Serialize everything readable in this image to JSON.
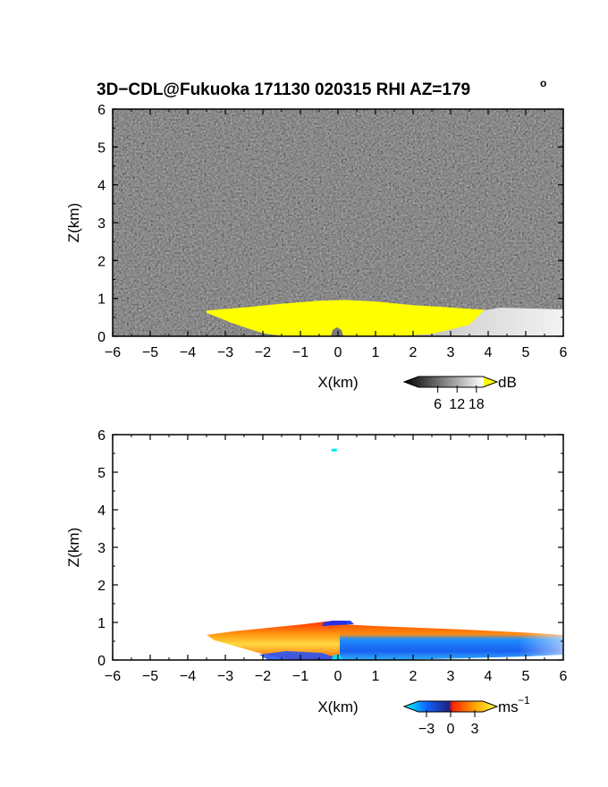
{
  "title": {
    "main": "3D−CDL@Fukuoka 171130 020315 RHI AZ=179",
    "degree_mark": "o"
  },
  "chart_data": [
    {
      "type": "heatmap",
      "panel": "reflectivity",
      "xlabel": "X(km)",
      "ylabel": "Z(km)",
      "xlim": [
        -6,
        6
      ],
      "ylim": [
        0,
        6
      ],
      "xticks": [
        -6,
        -5,
        -4,
        -3,
        -2,
        -1,
        0,
        1,
        2,
        3,
        4,
        5,
        6
      ],
      "yticks": [
        0,
        1,
        2,
        3,
        4,
        5,
        6
      ],
      "background": "grey noise field",
      "saturated_region": {
        "color": "#ffff00",
        "boundary_x": [
          -3.5,
          -2.5,
          -1.5,
          -0.5,
          0.2,
          1.0,
          2.0,
          3.0,
          3.9,
          3.5,
          2.5,
          1.5,
          0.5,
          -0.5,
          -1.4,
          -2.0,
          -2.8,
          -3.5
        ],
        "boundary_z": [
          0.68,
          0.76,
          0.86,
          0.94,
          0.96,
          0.92,
          0.82,
          0.76,
          0.7,
          0.3,
          0.06,
          0.0,
          0.0,
          0.0,
          0.0,
          0.08,
          0.34,
          0.62
        ]
      },
      "colorbar": {
        "label": "dB",
        "ticks": [
          "6",
          "12",
          "18"
        ],
        "tick_values": [
          6,
          12,
          18
        ],
        "range": [
          0,
          20
        ],
        "colors": [
          "#000000",
          "#ffffff",
          "#ffff00"
        ]
      }
    },
    {
      "type": "heatmap",
      "panel": "doppler velocity",
      "xlabel": "X(km)",
      "ylabel": "Z(km)",
      "xlim": [
        -6,
        6
      ],
      "ylim": [
        0,
        6
      ],
      "xticks": [
        -6,
        -5,
        -4,
        -3,
        -2,
        -1,
        0,
        1,
        2,
        3,
        4,
        5,
        6
      ],
      "yticks": [
        0,
        1,
        2,
        3,
        4,
        5,
        6
      ],
      "isolated_echo": {
        "x": -0.1,
        "z": 5.6,
        "color": "#00e8f0"
      },
      "echo_layer_left": {
        "x_range": [
          -3.5,
          0.2
        ],
        "top_z": [
          0.65,
          0.8,
          0.9,
          0.98
        ],
        "core_color": "#ffd040",
        "edge_color": "#ff3000"
      },
      "echo_layer_right": {
        "x_range": [
          0.2,
          6.0
        ],
        "top_z": [
          0.96,
          0.86,
          0.78,
          0.7
        ],
        "core_color": "#1e78ff",
        "edge_color": "#ff5000"
      },
      "colorbar": {
        "label": "ms",
        "label_exponent": "−1",
        "ticks": [
          "−3",
          "0",
          "3"
        ],
        "tick_values": [
          -3,
          0,
          3
        ],
        "range": [
          -4,
          4
        ],
        "colors": [
          "#00ffff",
          "#1060ff",
          "#202080",
          "#ff2000",
          "#ffa000",
          "#ffff40"
        ]
      }
    }
  ]
}
